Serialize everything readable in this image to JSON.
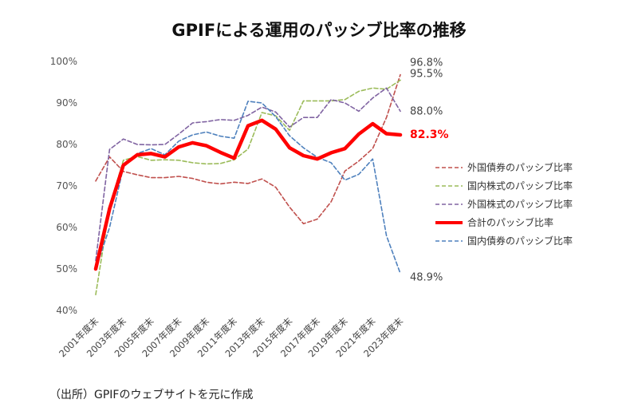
{
  "title": "GPIFによる運用のパッシブ比率の推移",
  "source": "（出所）GPIFのウェブサイトを元に作成",
  "chart_data": {
    "type": "line",
    "title": "GPIFによる運用のパッシブ比率の推移",
    "ylim": [
      40,
      100
    ],
    "yticks": [
      "40%",
      "50%",
      "60%",
      "70%",
      "80%",
      "90%",
      "100%"
    ],
    "ytick_values": [
      40,
      50,
      60,
      70,
      80,
      90,
      100
    ],
    "grid": false,
    "legend_position": "right",
    "x": [
      "2001年度末",
      "2002年度末",
      "2003年度末",
      "2004年度末",
      "2005年度末",
      "2006年度末",
      "2007年度末",
      "2008年度末",
      "2009年度末",
      "2010年度末",
      "2011年度末",
      "2012年度末",
      "2013年度末",
      "2014年度末",
      "2015年度末",
      "2016年度末",
      "2017年度末",
      "2018年度末",
      "2019年度末",
      "2020年度末",
      "2021年度末",
      "2022年度末",
      "2023年度末"
    ],
    "xtick_labels": [
      "2001年度末",
      "2003年度末",
      "2005年度末",
      "2007年度末",
      "2009年度末",
      "2011年度末",
      "2013年度末",
      "2015年度末",
      "2017年度末",
      "2019年度末",
      "2021年度末",
      "2023年度末"
    ],
    "series": [
      {
        "name": "外国債券のパッシブ比率",
        "color": "#c0504d",
        "style": "dashed",
        "width": 1.6,
        "values": [
          71.2,
          77.0,
          73.5,
          72.7,
          72.0,
          72.0,
          72.3,
          71.8,
          70.9,
          70.5,
          70.9,
          70.6,
          71.7,
          69.7,
          64.9,
          60.9,
          62.0,
          66.2,
          73.6,
          76.0,
          79.0,
          86.5,
          96.8
        ]
      },
      {
        "name": "国内株式のパッシブ比率",
        "color": "#9bbb59",
        "style": "dashed",
        "width": 1.6,
        "values": [
          43.8,
          65.0,
          76.2,
          77.1,
          76.2,
          76.3,
          76.2,
          75.6,
          75.3,
          75.4,
          76.3,
          78.9,
          87.7,
          86.9,
          83.4,
          90.5,
          90.5,
          90.5,
          90.8,
          92.8,
          93.6,
          93.3,
          95.5
        ]
      },
      {
        "name": "外国株式のパッシブ比率",
        "color": "#8064a2",
        "style": "dashed",
        "width": 1.6,
        "values": [
          52.0,
          78.8,
          81.3,
          80.0,
          79.9,
          80.0,
          82.5,
          85.2,
          85.5,
          86.0,
          85.8,
          87.0,
          89.0,
          87.8,
          84.2,
          86.5,
          86.5,
          90.8,
          90.0,
          88.0,
          91.2,
          93.6,
          88.0
        ]
      },
      {
        "name": "合計のパッシブ比率",
        "color": "#ff0000",
        "style": "solid",
        "width": 4.5,
        "values": [
          50.0,
          64.5,
          75.0,
          77.5,
          77.8,
          77.0,
          79.4,
          80.4,
          79.7,
          78.1,
          76.7,
          84.5,
          85.8,
          83.7,
          79.2,
          77.3,
          76.5,
          78.0,
          79.0,
          82.5,
          85.0,
          82.6,
          82.3
        ]
      },
      {
        "name": "国内債券のパッシブ比率",
        "color": "#4f81bd",
        "style": "dashed",
        "width": 1.6,
        "values": [
          50.0,
          60.0,
          74.5,
          77.8,
          79.0,
          77.5,
          80.8,
          82.3,
          83.0,
          82.0,
          81.5,
          90.4,
          90.0,
          86.7,
          82.1,
          79.2,
          76.9,
          75.6,
          71.4,
          72.8,
          76.5,
          58.0,
          48.9
        ]
      }
    ],
    "end_labels": [
      {
        "text": "96.8%",
        "value": 96.8,
        "bold": false
      },
      {
        "text": "95.5%",
        "value": 95.5,
        "bold": false
      },
      {
        "text": "88.0%",
        "value": 88.0,
        "bold": false
      },
      {
        "text": "82.3%",
        "value": 82.3,
        "bold": true
      },
      {
        "text": "48.9%",
        "value": 48.9,
        "bold": false
      }
    ]
  }
}
